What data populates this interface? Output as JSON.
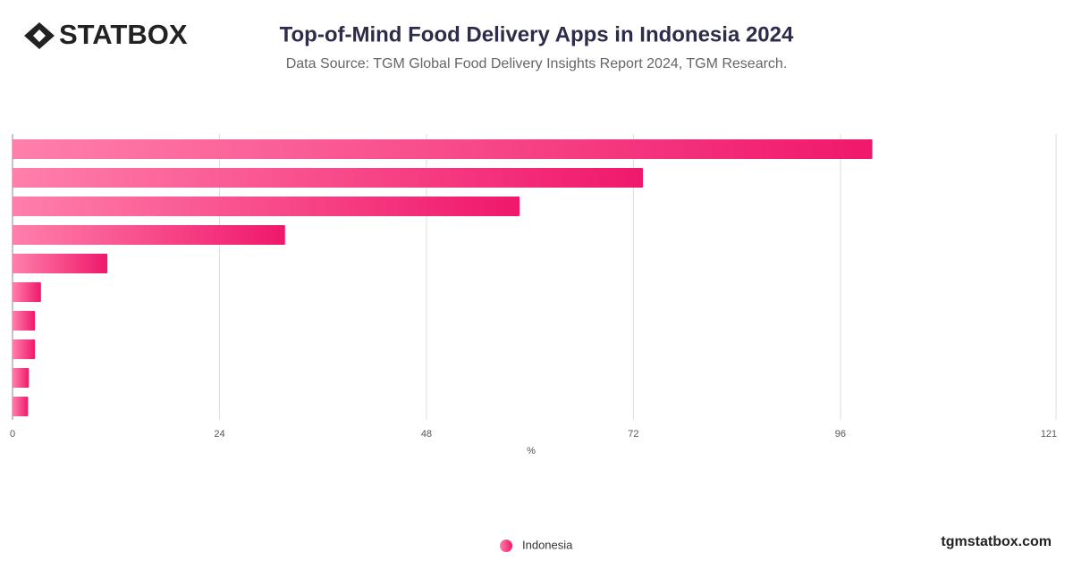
{
  "brand": {
    "logo": "STATBOX",
    "website": "tgmstatbox.com"
  },
  "chart_data": {
    "type": "bar",
    "orientation": "horizontal",
    "title": "Top-of-Mind Food Delivery Apps in Indonesia 2024",
    "subtitle": "Data Source: TGM Global Food Delivery Insights Report 2024, TGM Research.",
    "x_label": "%",
    "categories": [
      null,
      null,
      null,
      null,
      null,
      null,
      null,
      null,
      null,
      null
    ],
    "series": [
      {
        "name": "Indonesia",
        "color": "#f0186b",
        "values": [
          99.7,
          73.1,
          58.8,
          31.6,
          11.0,
          3.3,
          2.6,
          2.6,
          1.9,
          1.8
        ]
      }
    ],
    "xlim": [
      0,
      121
    ],
    "xticks": [
      0,
      24,
      48,
      72,
      96,
      121
    ],
    "grid": true
  }
}
